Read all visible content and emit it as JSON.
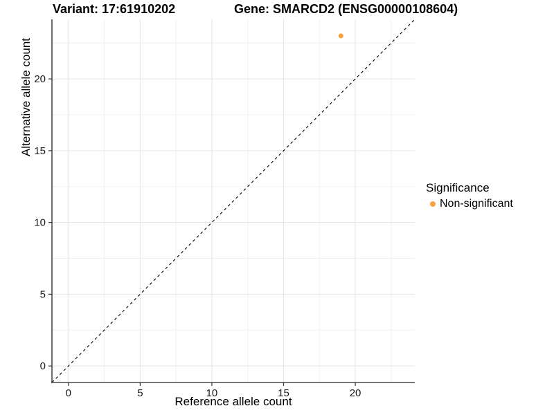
{
  "figure": {
    "title_left": "Variant: 17:61910202",
    "title_right": "Gene: SMARCD2 (ENSG00000108604)"
  },
  "chart_data": {
    "type": "scatter",
    "title": "Variant: 17:61910202   Gene: SMARCD2 (ENSG00000108604)",
    "xlabel": "Reference allele count",
    "ylabel": "Alternative allele count",
    "xlim": [
      -1.15,
      24.15
    ],
    "ylim": [
      -1.15,
      24.15
    ],
    "x_ticks": [
      0,
      5,
      10,
      15,
      20
    ],
    "y_ticks": [
      0,
      5,
      10,
      15,
      20
    ],
    "x_minor_ticks": [
      2.5,
      7.5,
      12.5,
      17.5,
      22.5
    ],
    "y_minor_ticks": [
      2.5,
      7.5,
      12.5,
      17.5,
      22.5
    ],
    "grid": true,
    "identity_line": {
      "slope": 1,
      "intercept": 0,
      "style": "dashed",
      "color": "#000000"
    },
    "series": [
      {
        "name": "Non-significant",
        "color": "#F9A242",
        "points": [
          {
            "x": 19,
            "y": 23
          }
        ]
      }
    ],
    "legend": {
      "title": "Significance",
      "position": "right",
      "entries": [
        {
          "label": "Non-significant",
          "color": "#F9A242"
        }
      ]
    },
    "colors": {
      "background": "#FFFFFF",
      "grid_major": "#E6E6E6",
      "grid_minor": "#F0F0F0",
      "axis_line": "#4A4A4A",
      "tick_mark": "#333333",
      "tick_label": "#1A1A1A",
      "point": "#F9A242"
    }
  }
}
